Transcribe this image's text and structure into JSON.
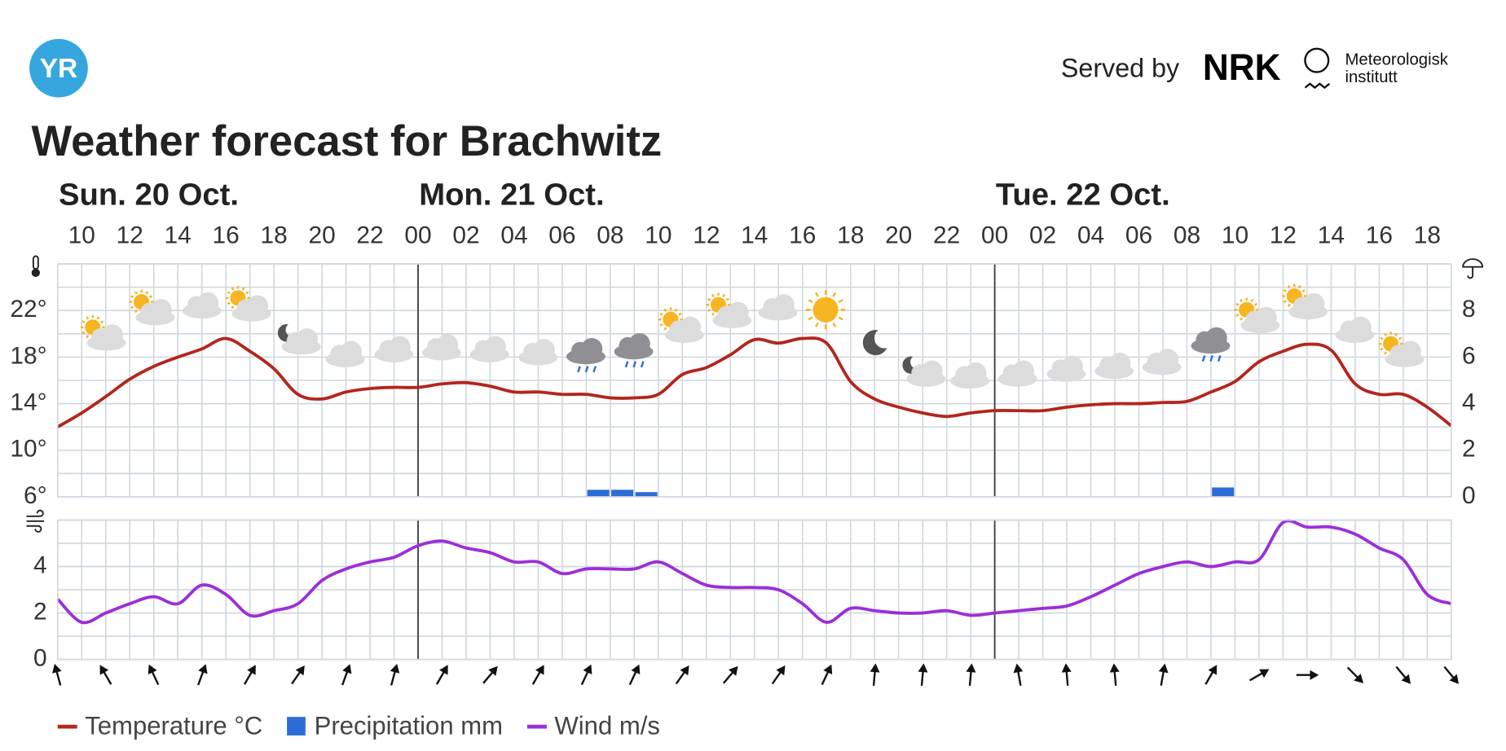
{
  "header": {
    "logo": "YR",
    "served_by": "Served by",
    "nrk": "NRK",
    "met_lines": [
      "Meteorologisk",
      "institutt"
    ]
  },
  "chart_data": {
    "type": "meteogram",
    "title": "Weather forecast for Brachwitz",
    "days": [
      "Sun. 20 Oct.",
      "Mon. 21 Oct.",
      "Tue. 22 Oct."
    ],
    "categories": [
      null,
      "10",
      null,
      "12",
      null,
      "14",
      null,
      "16",
      null,
      "18",
      null,
      "20",
      null,
      "22",
      null,
      "00",
      null,
      "02",
      null,
      "04",
      null,
      "06",
      null,
      "08",
      null,
      "10",
      null,
      "12",
      null,
      "14",
      null,
      "16",
      null,
      "18",
      null,
      "20",
      null,
      "22",
      null,
      "00",
      null,
      "02",
      null,
      "04",
      null,
      "06",
      null,
      "08",
      null,
      "10",
      null,
      "12",
      null,
      "14",
      null,
      "16",
      null,
      "18",
      null
    ],
    "ylim": [
      6,
      26
    ],
    "yticks": [
      {
        "value": 6,
        "label": "6°"
      },
      {
        "value": 10,
        "label": "10°"
      },
      {
        "value": 14,
        "label": "14°"
      },
      {
        "value": 18,
        "label": "18°"
      },
      {
        "value": 22,
        "label": "22°"
      }
    ],
    "y2lim": [
      0,
      10
    ],
    "y2ticks": [
      0,
      2,
      4,
      6,
      8
    ],
    "y2_minor_ticks": [
      1,
      3,
      5,
      7,
      9,
      10
    ],
    "windlim": [
      0,
      6
    ],
    "windticks": [
      0,
      2,
      4
    ],
    "wind_minor_ticks": [
      1,
      3,
      5,
      6
    ],
    "grid": true,
    "series": [
      {
        "name": "Temperature °C",
        "color": "#b3261e",
        "axis": "y",
        "values": [
          12,
          13.2,
          14.6,
          16.1,
          17.2,
          18,
          18.7,
          19.6,
          18.5,
          17,
          14.8,
          14.4,
          15,
          15.3,
          15.4,
          15.4,
          15.7,
          15.8,
          15.5,
          15,
          15,
          14.8,
          14.8,
          14.5,
          14.5,
          14.8,
          16.5,
          17.1,
          18.2,
          19.5,
          19.2,
          19.6,
          19.2,
          15.9,
          14.4,
          13.7,
          13.2,
          12.9,
          13.2,
          13.4,
          13.4,
          13.4,
          13.7,
          13.9,
          14,
          14,
          14.1,
          14.2,
          15,
          15.9,
          17.6,
          18.5,
          19.1,
          18.6,
          15.7,
          14.8,
          14.8,
          13.7,
          12.1
        ]
      },
      {
        "name": "Precipitation mm",
        "color": "#2c6cd6",
        "axis": "y2",
        "values": [
          0,
          0,
          0,
          0,
          0,
          0,
          0,
          0,
          0,
          0,
          0,
          0,
          0,
          0,
          0,
          0,
          0,
          0,
          0,
          0,
          0,
          0,
          0.3,
          0.3,
          0.2,
          0,
          0,
          0,
          0,
          0,
          0,
          0,
          0,
          0,
          0,
          0,
          0,
          0,
          0,
          0,
          0,
          0,
          0,
          0,
          0,
          0,
          0,
          0,
          0.4,
          0,
          0,
          0,
          0,
          0,
          0,
          0,
          0,
          0,
          0
        ]
      },
      {
        "name": "Wind m/s",
        "color": "#9b2fd8",
        "axis": "wind",
        "values": [
          2.6,
          1.6,
          2.0,
          2.4,
          2.7,
          2.4,
          3.2,
          2.8,
          1.9,
          2.1,
          2.4,
          3.4,
          3.9,
          4.2,
          4.4,
          4.9,
          5.1,
          4.8,
          4.6,
          4.2,
          4.2,
          3.7,
          3.9,
          3.9,
          3.9,
          4.2,
          3.7,
          3.2,
          3.1,
          3.1,
          3.0,
          2.4,
          1.6,
          2.2,
          2.1,
          2.0,
          2.0,
          2.1,
          1.9,
          2.0,
          2.1,
          2.2,
          2.3,
          2.7,
          3.2,
          3.7,
          4.0,
          4.2,
          4.0,
          4.2,
          4.3,
          5.9,
          5.7,
          5.7,
          5.4,
          4.8,
          4.3,
          2.8,
          2.4
        ],
        "directions": [
          -15,
          null,
          -30,
          null,
          -25,
          null,
          20,
          null,
          30,
          null,
          35,
          null,
          20,
          null,
          15,
          null,
          30,
          null,
          40,
          null,
          30,
          null,
          25,
          null,
          25,
          null,
          35,
          null,
          40,
          null,
          35,
          null,
          25,
          null,
          5,
          null,
          5,
          null,
          5,
          null,
          -10,
          null,
          -5,
          null,
          -5,
          null,
          10,
          null,
          30,
          null,
          60,
          null,
          90,
          null,
          135,
          null,
          140,
          null,
          140
        ]
      }
    ]
  }
}
